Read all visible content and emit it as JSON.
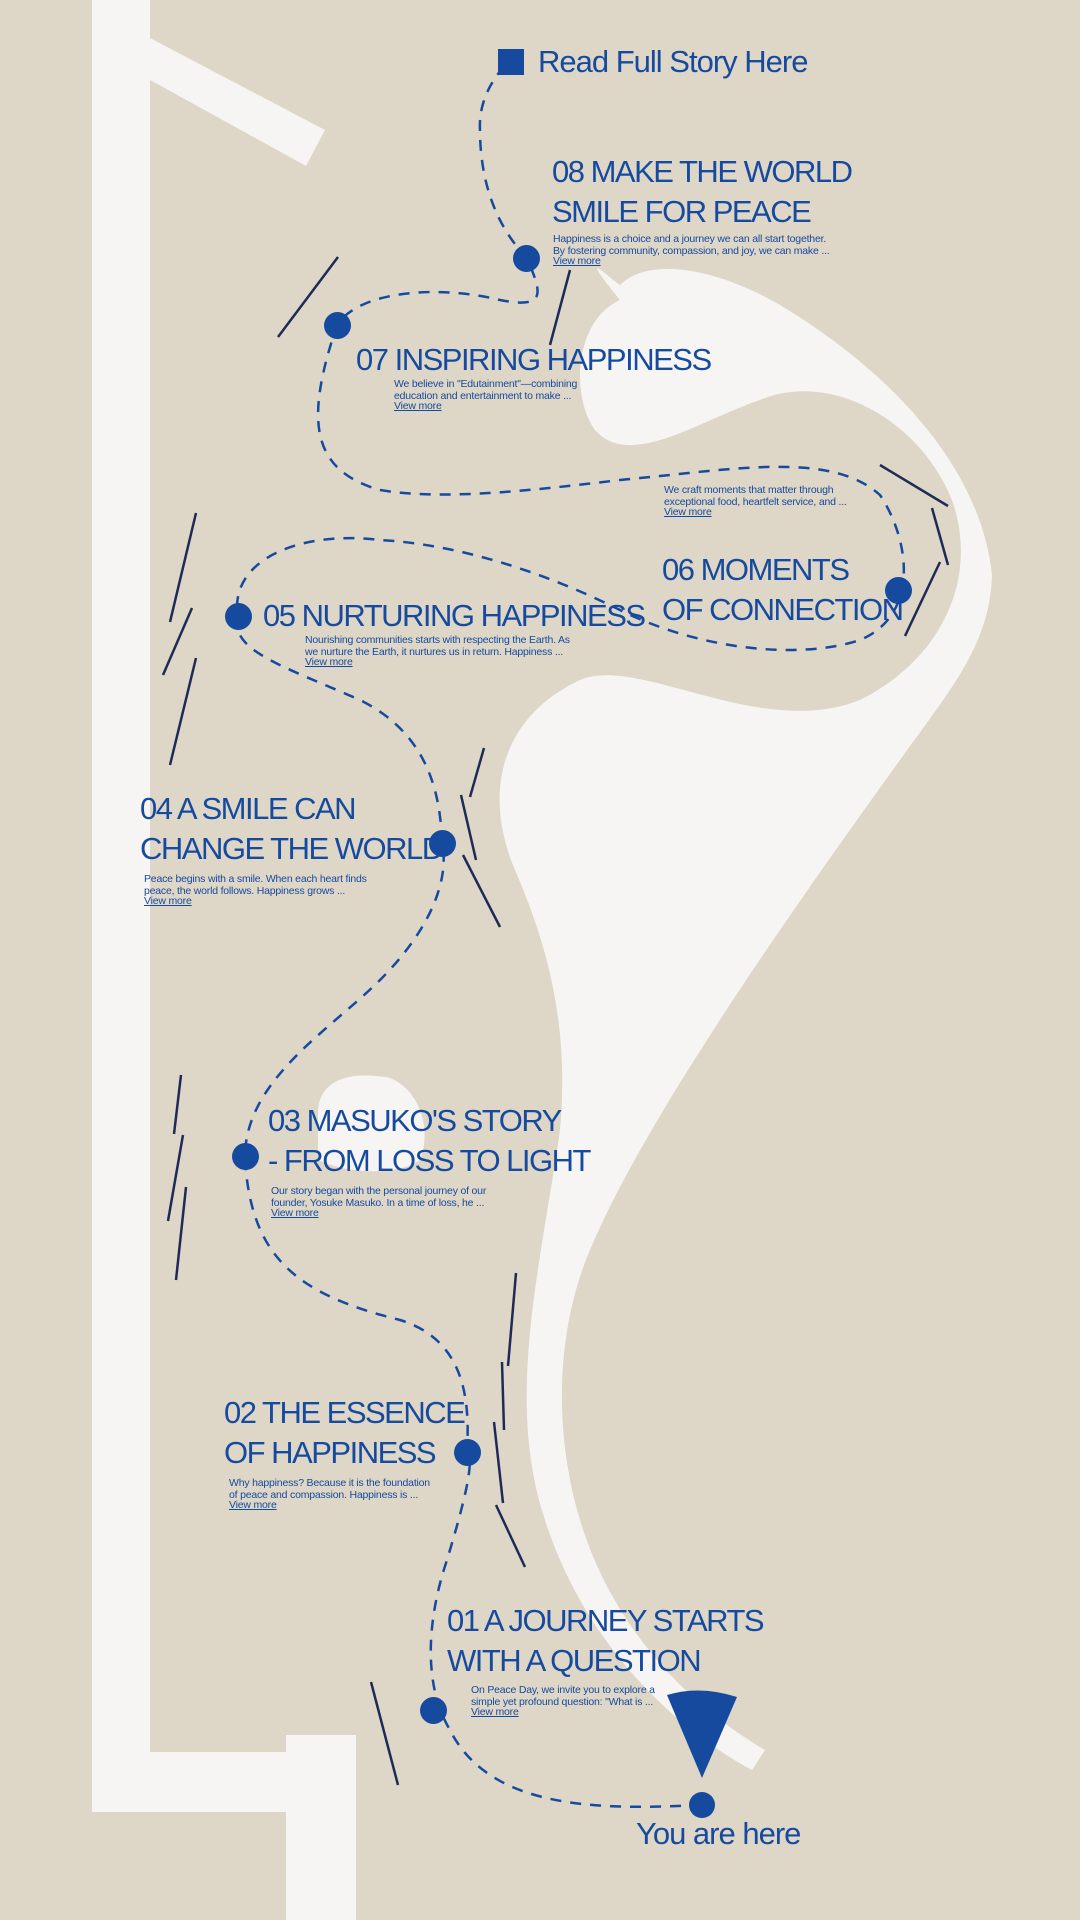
{
  "header": {
    "read_full_story": "Read Full Story Here"
  },
  "footer": {
    "you_are_here": "You are here"
  },
  "common": {
    "view_more": "View more"
  },
  "milestones": [
    {
      "title": "01 A JOURNEY STARTS\nWITH A QUESTION",
      "desc": "On Peace Day, we invite you to explore a\nsimple yet profound question: \"What is ..."
    },
    {
      "title": "02 THE ESSENCE\nOF HAPPINESS",
      "desc": "Why happiness? Because it is the foundation\nof peace and compassion. Happiness is ..."
    },
    {
      "title": "03 MASUKO'S STORY\n- FROM LOSS TO LIGHT",
      "desc": "Our story began with the personal journey of our\nfounder, Yosuke Masuko. In a time of loss, he ..."
    },
    {
      "title": "04  A SMILE CAN\nCHANGE THE WORLD",
      "desc": "Peace begins with a smile. When each heart finds\npeace, the world follows. Happiness grows ..."
    },
    {
      "title": "05 NURTURING HAPPINESS",
      "desc": "Nourishing communities starts with respecting the Earth. As\nwe nurture the Earth, it nurtures us in return. Happiness ..."
    },
    {
      "title": "06 MOMENTS\nOF CONNECTION",
      "desc": "We craft moments that matter through\nexceptional food, heartfelt service, and ..."
    },
    {
      "title": "07 INSPIRING HAPPINESS",
      "desc": "We believe in \"Edutainment\"—combining\neducation and entertainment to make ..."
    },
    {
      "title": "08 MAKE THE WORLD\nSMILE FOR PEACE",
      "desc": "Happiness is a choice and a journey we can all start together.\nBy fostering community, compassion, and joy, we can make ..."
    }
  ],
  "colors": {
    "background": "#DED6C6",
    "accent": "#154A9E",
    "path": "#F7F5F3",
    "stroke": "#1E2B57"
  }
}
